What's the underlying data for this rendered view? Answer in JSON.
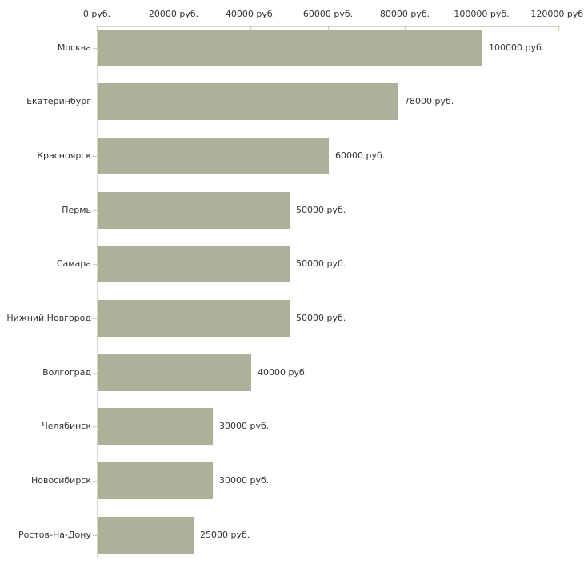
{
  "chart_data": {
    "type": "bar",
    "orientation": "horizontal",
    "title": "",
    "xlabel": "",
    "ylabel": "",
    "xlim": [
      0,
      120000
    ],
    "grid": false,
    "legend": false,
    "categories": [
      "Москва",
      "Екатеринбург",
      "Красноярск",
      "Пермь",
      "Самара",
      "Нижний Новгород",
      "Волгоград",
      "Челябинск",
      "Новосибирск",
      "Ростов-На-Дону"
    ],
    "values": [
      100000,
      78000,
      60000,
      50000,
      50000,
      50000,
      40000,
      30000,
      30000,
      25000
    ],
    "value_labels": [
      "100000 руб.",
      "78000 руб.",
      "60000 руб.",
      "50000 руб.",
      "50000 руб.",
      "50000 руб.",
      "40000 руб.",
      "30000 руб.",
      "30000 руб.",
      "25000 руб."
    ],
    "x_ticks": [
      0,
      20000,
      40000,
      60000,
      80000,
      100000,
      120000
    ],
    "x_tick_labels": [
      "0 руб.",
      "20000 руб.",
      "40000 руб.",
      "60000 руб.",
      "80000 руб.",
      "100000 руб.",
      "120000 руб."
    ],
    "colors": {
      "bar": "#acb199",
      "axis_line": "#d5d7c6",
      "tick": "#c8cbac",
      "text": "#333333",
      "background": "#ffffff"
    }
  }
}
